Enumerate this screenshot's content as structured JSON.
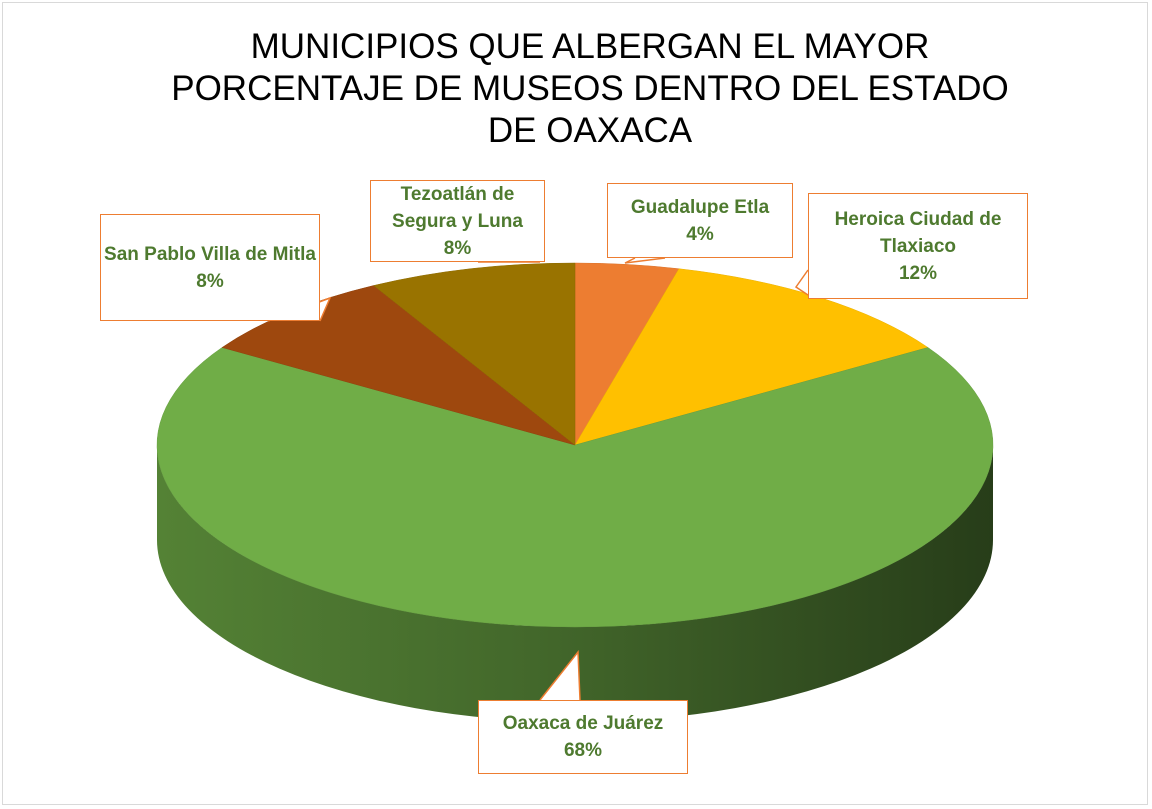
{
  "chart_data": {
    "type": "pie",
    "title": "MUNICIPIOS QUE ALBERGAN EL MAYOR PORCENTAJE DE MUSEOS DENTRO DEL ESTADO DE OAXACA",
    "categories": [
      "Guadalupe Etla",
      "Heroica Ciudad de Tlaxiaco",
      "Oaxaca de Juárez",
      "San Pablo Villa de Mitla",
      "Tezoatlán de Segura y Luna"
    ],
    "values": [
      4,
      12,
      68,
      8,
      8
    ],
    "value_labels": [
      "4%",
      "12%",
      "68%",
      "8%",
      "8%"
    ],
    "colors": [
      "#ED7D31",
      "#FFC000",
      "#70AD47",
      "#9E480E",
      "#997300"
    ]
  }
}
